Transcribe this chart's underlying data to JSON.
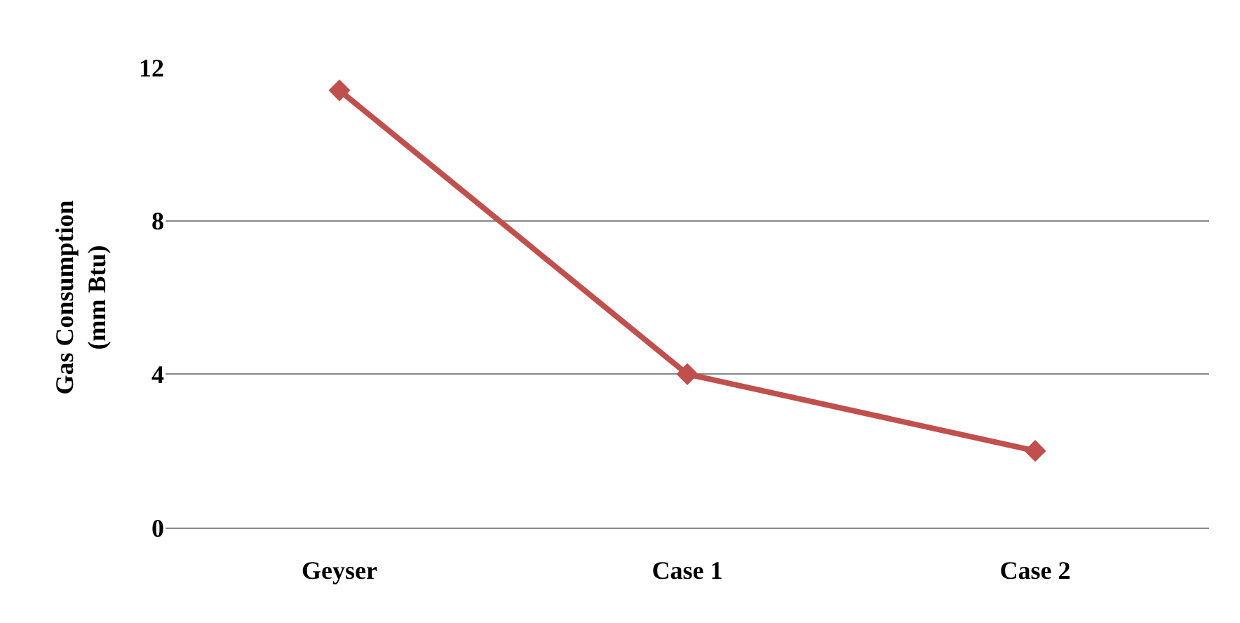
{
  "chart_data": {
    "type": "line",
    "ylabel": "Gas Consumption\n(mm Btu)",
    "categories": [
      "Geyser",
      "Case 1",
      "Case 2"
    ],
    "series": [
      {
        "color": "#c0504d",
        "values": [
          11.4,
          4.0,
          2.0
        ]
      }
    ],
    "ylim": [
      0,
      12
    ],
    "yticks": [
      0,
      4,
      8,
      12
    ],
    "grid": "y",
    "marker": "diamond",
    "line_style": "solid"
  }
}
